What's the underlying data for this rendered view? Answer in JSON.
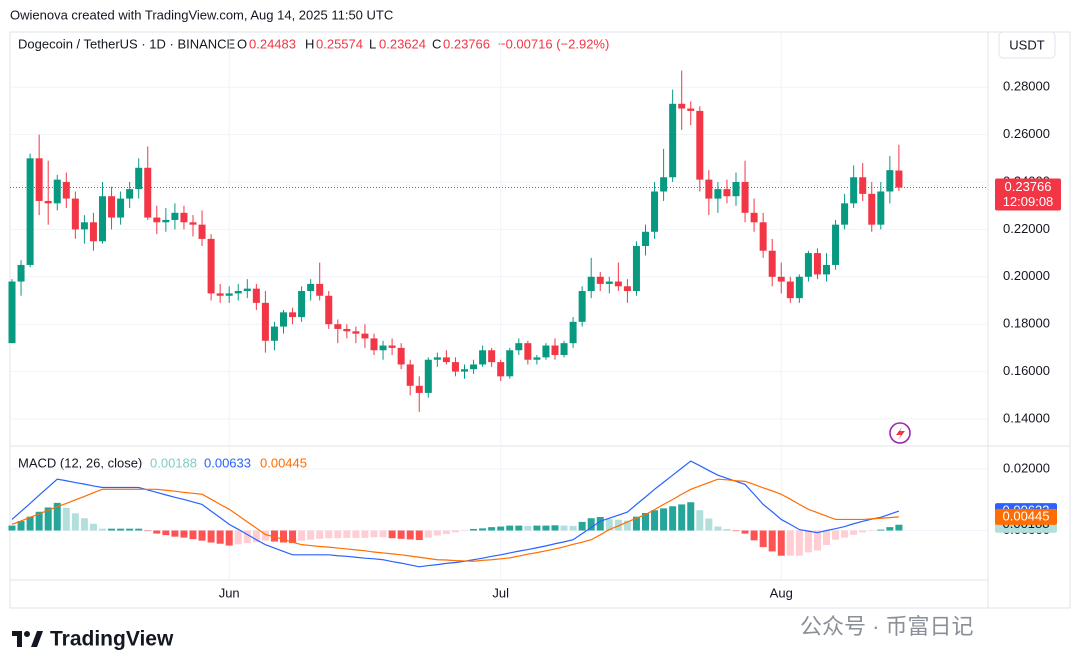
{
  "header": "Owienova created with TradingView.com, Aug 14, 2025 11:50 UTC",
  "chart_data": {
    "type": "candlestick",
    "title": "Dogecoin / TetherUS · 1D · BINANCE",
    "ohlc_labels": [
      "O",
      "H",
      "L",
      "C"
    ],
    "change": "−0.00716 (−2.92%)",
    "currency": "USDT",
    "countdown": "12:09:08",
    "up_color": "#089981",
    "down_color": "#f23645",
    "grid": true,
    "categories": [
      null,
      null,
      null,
      null,
      null,
      null,
      null,
      null,
      null,
      null,
      null,
      null,
      null,
      null,
      null,
      null,
      null,
      null,
      null,
      null,
      null,
      null,
      null,
      null,
      "Jun",
      null,
      null,
      null,
      null,
      null,
      null,
      null,
      null,
      null,
      null,
      null,
      null,
      null,
      null,
      null,
      null,
      null,
      null,
      null,
      null,
      null,
      null,
      null,
      null,
      null,
      null,
      null,
      null,
      null,
      "Jul",
      null,
      null,
      null,
      null,
      null,
      null,
      null,
      null,
      null,
      null,
      null,
      null,
      null,
      null,
      null,
      null,
      null,
      null,
      null,
      null,
      null,
      null,
      null,
      null,
      null,
      null,
      null,
      null,
      null,
      null,
      "Aug",
      null,
      null,
      null,
      null,
      null,
      null,
      null,
      null,
      null,
      null,
      null,
      null,
      null
    ],
    "open": [
      0.172,
      0.198,
      0.205,
      0.25,
      0.232,
      0.231,
      0.24,
      0.233,
      0.22,
      0.223,
      0.215,
      0.234,
      0.225,
      0.233,
      0.237,
      0.246,
      0.225,
      0.223,
      0.224,
      0.227,
      0.223,
      0.222,
      0.216,
      0.193,
      0.192,
      0.193,
      0.194,
      0.195,
      0.189,
      0.173,
      0.179,
      0.185,
      0.183,
      0.194,
      0.197,
      0.192,
      0.18,
      0.178,
      0.177,
      0.176,
      0.174,
      0.169,
      0.171,
      0.17,
      0.163,
      0.154,
      0.151,
      0.165,
      0.166,
      0.164,
      0.16,
      0.161,
      0.163,
      0.169,
      0.164,
      0.158,
      0.169,
      0.172,
      0.165,
      0.166,
      0.171,
      0.167,
      0.172,
      0.181,
      0.194,
      0.2,
      0.197,
      0.198,
      0.196,
      0.194,
      0.213,
      0.219,
      0.236,
      0.242,
      0.273,
      0.271,
      0.27,
      0.241,
      0.233,
      0.237,
      0.234,
      0.24,
      0.227,
      0.223,
      0.211,
      0.2,
      0.198,
      0.191,
      0.2,
      0.21,
      0.201,
      0.205,
      0.222,
      0.231,
      0.242,
      0.235,
      0.222,
      0.236,
      0.24483
    ],
    "high": [
      0.199,
      0.207,
      0.252,
      0.26,
      0.249,
      0.243,
      0.244,
      0.236,
      0.226,
      0.227,
      0.24,
      0.238,
      0.236,
      0.24,
      0.25,
      0.255,
      0.23,
      0.229,
      0.231,
      0.23,
      0.226,
      0.228,
      0.218,
      0.197,
      0.196,
      0.197,
      0.199,
      0.197,
      0.194,
      0.181,
      0.186,
      0.187,
      0.196,
      0.199,
      0.206,
      0.194,
      0.182,
      0.18,
      0.179,
      0.18,
      0.176,
      0.173,
      0.174,
      0.172,
      0.165,
      0.158,
      0.166,
      0.168,
      0.169,
      0.166,
      0.163,
      0.165,
      0.171,
      0.17,
      0.165,
      0.17,
      0.174,
      0.173,
      0.167,
      0.172,
      0.174,
      0.173,
      0.183,
      0.196,
      0.208,
      0.202,
      0.2,
      0.206,
      0.199,
      0.215,
      0.222,
      0.24,
      0.254,
      0.279,
      0.287,
      0.274,
      0.272,
      0.245,
      0.24,
      0.241,
      0.244,
      0.249,
      0.233,
      0.227,
      0.216,
      0.206,
      0.2,
      0.201,
      0.211,
      0.212,
      0.21,
      0.224,
      0.235,
      0.247,
      0.248,
      0.24,
      0.24,
      0.251,
      0.25574
    ],
    "low": [
      0.172,
      0.192,
      0.204,
      0.226,
      0.222,
      0.228,
      0.229,
      0.216,
      0.214,
      0.211,
      0.214,
      0.22,
      0.222,
      0.229,
      0.233,
      0.224,
      0.218,
      0.219,
      0.22,
      0.22,
      0.217,
      0.213,
      0.19,
      0.189,
      0.189,
      0.19,
      0.191,
      0.186,
      0.168,
      0.169,
      0.176,
      0.18,
      0.181,
      0.19,
      0.19,
      0.178,
      0.172,
      0.174,
      0.172,
      0.17,
      0.167,
      0.165,
      0.167,
      0.161,
      0.15,
      0.143,
      0.149,
      0.162,
      0.163,
      0.158,
      0.157,
      0.159,
      0.162,
      0.162,
      0.156,
      0.157,
      0.167,
      0.163,
      0.163,
      0.165,
      0.165,
      0.166,
      0.17,
      0.179,
      0.191,
      0.194,
      0.193,
      0.194,
      0.189,
      0.192,
      0.209,
      0.216,
      0.232,
      0.24,
      0.262,
      0.264,
      0.236,
      0.226,
      0.227,
      0.231,
      0.23,
      0.223,
      0.219,
      0.208,
      0.196,
      0.193,
      0.189,
      0.189,
      0.198,
      0.199,
      0.198,
      0.203,
      0.22,
      0.229,
      0.232,
      0.219,
      0.22,
      0.231,
      0.23624
    ],
    "close": [
      0.198,
      0.205,
      0.25,
      0.232,
      0.231,
      0.241,
      0.233,
      0.22,
      0.223,
      0.215,
      0.234,
      0.225,
      0.233,
      0.237,
      0.246,
      0.225,
      0.223,
      0.224,
      0.227,
      0.223,
      0.222,
      0.216,
      0.193,
      0.192,
      0.193,
      0.194,
      0.195,
      0.189,
      0.173,
      0.179,
      0.185,
      0.183,
      0.194,
      0.197,
      0.192,
      0.18,
      0.178,
      0.177,
      0.176,
      0.174,
      0.169,
      0.171,
      0.17,
      0.163,
      0.154,
      0.151,
      0.165,
      0.166,
      0.164,
      0.16,
      0.161,
      0.163,
      0.169,
      0.164,
      0.158,
      0.169,
      0.172,
      0.165,
      0.166,
      0.171,
      0.167,
      0.172,
      0.181,
      0.194,
      0.2,
      0.197,
      0.198,
      0.196,
      0.194,
      0.213,
      0.219,
      0.236,
      0.242,
      0.273,
      0.271,
      0.27,
      0.241,
      0.233,
      0.237,
      0.234,
      0.24,
      0.227,
      0.223,
      0.211,
      0.2,
      0.198,
      0.191,
      0.2,
      0.21,
      0.201,
      0.205,
      0.222,
      0.231,
      0.242,
      0.235,
      0.222,
      0.236,
      0.245,
      0.23766
    ],
    "ylim": [
      0.1286,
      0.3033
    ],
    "yticks": [
      {
        "value": 0.14,
        "label": "0.14000"
      },
      {
        "value": 0.16,
        "label": "0.16000"
      },
      {
        "value": 0.18,
        "label": "0.18000"
      },
      {
        "value": 0.2,
        "label": "0.20000"
      },
      {
        "value": 0.22,
        "label": "0.22000"
      },
      {
        "value": 0.24,
        "label": "0.24000"
      },
      {
        "value": 0.26,
        "label": "0.26000"
      },
      {
        "value": 0.28,
        "label": "0.28000"
      }
    ],
    "macd": {
      "title": "MACD (12, 26, close)",
      "ylim": [
        -0.0161,
        0.0275
      ],
      "yticks": [
        {
          "value": 0,
          "label": "0.00000"
        },
        {
          "value": 0.02,
          "label": "0.02000"
        }
      ],
      "histogram": {
        "colors": [
          "#26a69a",
          "#b2dfdb",
          "#ffcdd2",
          "#ff5252"
        ],
        "values": [
          0.0016,
          0.0031,
          0.0045,
          0.0061,
          0.0075,
          0.009,
          0.0074,
          0.0056,
          0.004,
          0.0022,
          0.0006,
          0.0006,
          0.0006,
          0.0006,
          0.0006,
          -0.0002,
          -0.001,
          -0.0015,
          -0.002,
          -0.0023,
          -0.0028,
          -0.0033,
          -0.0039,
          -0.0043,
          -0.0049,
          -0.0045,
          -0.0041,
          -0.0038,
          -0.0033,
          -0.0036,
          -0.0039,
          -0.0041,
          -0.0033,
          -0.003,
          -0.0027,
          -0.0025,
          -0.0025,
          -0.0024,
          -0.0024,
          -0.0024,
          -0.0022,
          -0.0022,
          -0.0025,
          -0.0027,
          -0.0029,
          -0.0031,
          -0.0023,
          -0.0016,
          -0.0011,
          -0.0006,
          -0.0001,
          0.0005,
          0.0007,
          0.0011,
          0.0013,
          0.0016,
          0.0016,
          0.0015,
          0.0016,
          0.0016,
          0.0017,
          0.0016,
          0.0015,
          0.0028,
          0.004,
          0.0044,
          0.0037,
          0.0035,
          0.0032,
          0.0045,
          0.0057,
          0.0066,
          0.0072,
          0.0079,
          0.0085,
          0.0092,
          0.0066,
          0.0039,
          0.0013,
          0.0005,
          -0.0002,
          -0.001,
          -0.0032,
          -0.0054,
          -0.0068,
          -0.0082,
          -0.0082,
          -0.0082,
          -0.0071,
          -0.0065,
          -0.0047,
          -0.003,
          -0.0023,
          -0.0014,
          -0.0006,
          -0.0001,
          0.0003,
          0.0011,
          0.00188
        ]
      },
      "series": [
        {
          "color": "#2962ff",
          "values": [
            0.0036,
            0.0062,
            0.0088,
            0.0115,
            0.0141,
            0.0167,
            0.0162,
            0.0156,
            0.0151,
            0.0145,
            0.014,
            0.014,
            0.014,
            0.014,
            0.014,
            0.0132,
            0.0124,
            0.0116,
            0.0108,
            0.0101,
            0.0093,
            0.0085,
            0.0063,
            0.0042,
            0.002,
            0.0004,
            -0.0013,
            -0.003,
            -0.0046,
            -0.0057,
            -0.0068,
            -0.0079,
            -0.0079,
            -0.0079,
            -0.0079,
            -0.0079,
            -0.0082,
            -0.0084,
            -0.0087,
            -0.009,
            -0.0092,
            -0.0095,
            -0.0101,
            -0.0106,
            -0.0112,
            -0.0118,
            -0.0114,
            -0.0111,
            -0.0107,
            -0.0104,
            -0.01,
            -0.0095,
            -0.009,
            -0.0084,
            -0.0079,
            -0.0073,
            -0.0067,
            -0.0062,
            -0.0056,
            -0.005,
            -0.0043,
            -0.0037,
            -0.003,
            -0.001,
            0.001,
            0.003,
            0.004,
            0.005,
            0.006,
            0.0085,
            0.0109,
            0.0134,
            0.0157,
            0.018,
            0.0203,
            0.0226,
            0.0211,
            0.0195,
            0.018,
            0.017,
            0.016,
            0.015,
            0.0118,
            0.0085,
            0.0061,
            0.0036,
            0.002,
            0.0003,
            -0.0002,
            -0.0007,
            0,
            0.0006,
            0.0013,
            0.0022,
            0.003,
            0.0037,
            0.0043,
            0.0053,
            0.00633
          ]
        },
        {
          "color": "#ff6d00",
          "values": [
            0.002,
            0.0031,
            0.0043,
            0.0054,
            0.0066,
            0.0077,
            0.0088,
            0.01,
            0.0111,
            0.0123,
            0.0134,
            0.0134,
            0.0134,
            0.0134,
            0.0134,
            0.0134,
            0.0134,
            0.0131,
            0.0128,
            0.0124,
            0.0121,
            0.0118,
            0.0102,
            0.0085,
            0.0069,
            0.0049,
            0.0028,
            0.0008,
            -0.0013,
            -0.0021,
            -0.0029,
            -0.0038,
            -0.0046,
            -0.0049,
            -0.0052,
            -0.0054,
            -0.0057,
            -0.006,
            -0.0063,
            -0.0066,
            -0.007,
            -0.0073,
            -0.0076,
            -0.0079,
            -0.0083,
            -0.0087,
            -0.0091,
            -0.0095,
            -0.0096,
            -0.0098,
            -0.0099,
            -0.01,
            -0.0097,
            -0.0095,
            -0.0092,
            -0.0089,
            -0.0083,
            -0.0077,
            -0.0072,
            -0.0066,
            -0.006,
            -0.0053,
            -0.0045,
            -0.0038,
            -0.003,
            -0.0014,
            0.0003,
            0.0015,
            0.0028,
            0.004,
            0.0052,
            0.0068,
            0.0085,
            0.0101,
            0.0118,
            0.0134,
            0.0145,
            0.0156,
            0.0167,
            0.0165,
            0.0162,
            0.016,
            0.015,
            0.0139,
            0.0129,
            0.0118,
            0.0102,
            0.0085,
            0.0069,
            0.0058,
            0.0047,
            0.0036,
            0.0036,
            0.0036,
            0.0036,
            0.0038,
            0.004,
            0.0042,
            0.00445
          ]
        }
      ]
    }
  },
  "footer": {
    "logo": "TradingView",
    "watermark": "公众号 · 币富日记"
  }
}
